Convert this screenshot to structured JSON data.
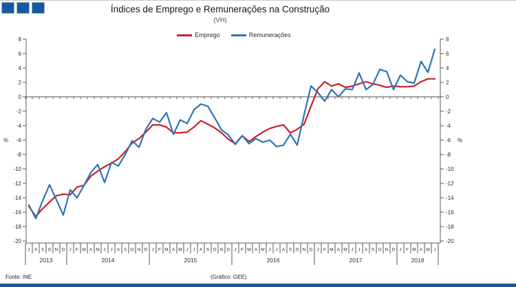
{
  "header": {
    "title": "Índices de Emprego e Remunerações na Construção",
    "subtitle": "(VH)"
  },
  "footer": {
    "source": "Fonte: INE",
    "credit": "(Gráfico: GEE)"
  },
  "logo": {
    "name": "gee-three-squares",
    "color": "#14599c",
    "count": 3
  },
  "colors": {
    "accent_navy": "#14599c",
    "emprego_red": "#c8202a",
    "remuneracoes_blue": "#2e74b5",
    "axis_gray": "#5a5a5a"
  },
  "chart_data": {
    "type": "line",
    "title": "Índices de Emprego e Remunerações na Construção",
    "subtitle": "(VH)",
    "ylabel_left": "%",
    "ylabel_right": "%",
    "ylim": [
      -20,
      8
    ],
    "ytick_step": 2,
    "grid": false,
    "legend_position": "top-center",
    "x_start": "2013-07",
    "x_end": "2018-06",
    "x_month_labels": [
      "J",
      "A",
      "S",
      "O",
      "N",
      "D",
      "J",
      "F",
      "M",
      "A",
      "M",
      "J",
      "J",
      "A",
      "S",
      "O",
      "N",
      "D",
      "J",
      "F",
      "M",
      "A",
      "M",
      "J",
      "J",
      "A",
      "S",
      "O",
      "N",
      "D",
      "J",
      "F",
      "M",
      "A",
      "M",
      "J",
      "J",
      "A",
      "S",
      "O",
      "N",
      "D",
      "J",
      "F",
      "M",
      "A",
      "M",
      "J",
      "J",
      "A",
      "S",
      "O",
      "N",
      "D",
      "J",
      "F",
      "M",
      "A",
      "M",
      "J"
    ],
    "year_groups": [
      {
        "year": "2013",
        "months": 6
      },
      {
        "year": "2014",
        "months": 12
      },
      {
        "year": "2015",
        "months": 12
      },
      {
        "year": "2016",
        "months": 12
      },
      {
        "year": "2017",
        "months": 12
      },
      {
        "year": "2018",
        "months": 6
      }
    ],
    "series": [
      {
        "name": "Emprego",
        "color": "#c8202a",
        "values": [
          -15.2,
          -16.6,
          -15.5,
          -14.6,
          -13.7,
          -13.5,
          -13.6,
          -12.5,
          -12.3,
          -11.0,
          -10.3,
          -9.7,
          -9.2,
          -8.6,
          -7.6,
          -6.4,
          -5.8,
          -4.9,
          -3.9,
          -3.9,
          -4.2,
          -5.0,
          -5.0,
          -4.9,
          -4.2,
          -3.3,
          -3.8,
          -4.3,
          -5.0,
          -5.9,
          -6.5,
          -5.4,
          -6.2,
          -5.5,
          -4.9,
          -4.4,
          -4.1,
          -3.9,
          -5.0,
          -4.5,
          -3.8,
          -1.3,
          1.1,
          2.1,
          1.5,
          1.8,
          1.3,
          1.5,
          1.8,
          2.1,
          1.8,
          1.6,
          1.3,
          1.5,
          1.4,
          1.4,
          1.5,
          2.1,
          2.5,
          2.5
        ]
      },
      {
        "name": "Remunerações",
        "color": "#2e74b5",
        "values": [
          -15.0,
          -16.9,
          -14.4,
          -12.2,
          -14.3,
          -16.4,
          -12.9,
          -14.0,
          -12.3,
          -10.5,
          -9.4,
          -11.9,
          -9.1,
          -9.6,
          -8.0,
          -6.1,
          -7.0,
          -4.5,
          -3.0,
          -3.5,
          -2.2,
          -5.2,
          -3.2,
          -3.7,
          -1.8,
          -1.0,
          -1.3,
          -2.9,
          -4.6,
          -5.3,
          -6.6,
          -5.4,
          -6.5,
          -5.8,
          -6.3,
          -6.0,
          -6.9,
          -6.7,
          -5.2,
          -6.7,
          -2.5,
          1.5,
          0.6,
          -0.6,
          1.0,
          0.0,
          1.1,
          1.0,
          3.3,
          1.0,
          1.7,
          3.8,
          3.5,
          1.0,
          3.0,
          2.1,
          1.9,
          4.9,
          3.4,
          6.6
        ]
      }
    ]
  }
}
